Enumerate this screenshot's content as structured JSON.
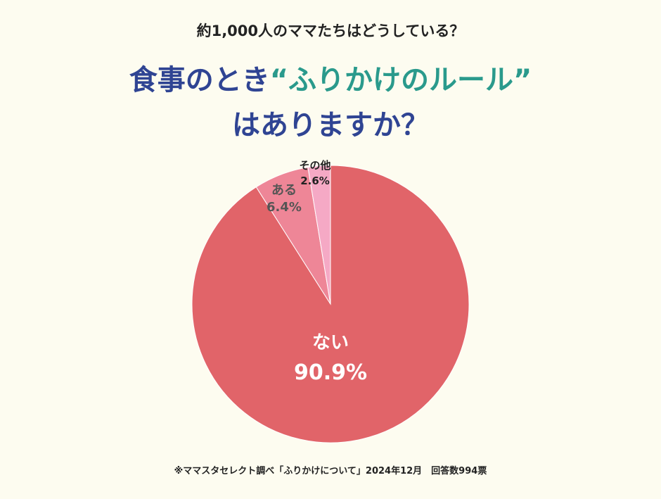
{
  "subtitle": "約1,000人のママたちはどうしている？",
  "headline": {
    "prefix": "食事のとき",
    "accent": "“ふりかけのルール”",
    "line2": "はありますか？"
  },
  "chart_data": {
    "type": "pie",
    "title": "食事のとき“ふりかけのルール”はありますか？",
    "slices": [
      {
        "label": "ない",
        "value": 90.9,
        "display": "90.9%",
        "color": "#e16469",
        "label_color": "#ffffff"
      },
      {
        "label": "ある",
        "value": 6.4,
        "display": "6.4%",
        "color": "#ee8697",
        "label_color": "#555555"
      },
      {
        "label": "その他",
        "value": 2.6,
        "display": "2.6%",
        "color": "#f5a9c5",
        "label_color": "#222222"
      }
    ],
    "start": "12 o'clock",
    "direction": "clockwise starting with ない"
  },
  "footnote": "※ママスタセレクト調べ「ふりかけについて」2024年12月　回答数994票"
}
